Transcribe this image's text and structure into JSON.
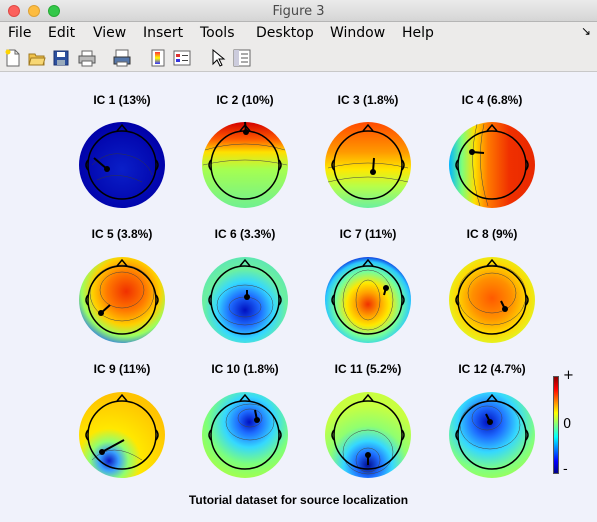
{
  "window": {
    "title": "Figure 3"
  },
  "menu": [
    "File",
    "Edit",
    "View",
    "Insert",
    "Tools",
    "Desktop",
    "Window",
    "Help"
  ],
  "toolbar_icons": [
    "new-figure-icon",
    "open-file-icon",
    "save-icon",
    "print-icon",
    "print-preview-icon",
    "colorbar-icon",
    "legend-icon",
    "pointer-icon",
    "property-editor-icon"
  ],
  "components": [
    {
      "label": "IC 1 (13%)",
      "pattern": "deep-blue"
    },
    {
      "label": "IC 2 (10%)",
      "pattern": "frontal-red"
    },
    {
      "label": "IC 3 (1.8%)",
      "pattern": "frontal-orange"
    },
    {
      "label": "IC 4 (6.8%)",
      "pattern": "right-red"
    },
    {
      "label": "IC 5 (3.8%)",
      "pattern": "central-red"
    },
    {
      "label": "IC 6 (3.3%)",
      "pattern": "central-blue"
    },
    {
      "label": "IC 7 (11%)",
      "pattern": "central-red-small"
    },
    {
      "label": "IC 8 (9%)",
      "pattern": "broad-orange"
    },
    {
      "label": "IC 9 (11%)",
      "pattern": "yellow-left-blue"
    },
    {
      "label": "IC 10 (1.8%)",
      "pattern": "top-blue"
    },
    {
      "label": "IC 11 (5.2%)",
      "pattern": "posterior-blue"
    },
    {
      "label": "IC 12 (4.7%)",
      "pattern": "top-blue-wide"
    }
  ],
  "colorbar": {
    "max_label": "+",
    "mid_label": "0",
    "min_label": "-"
  },
  "suptitle": "Tutorial dataset for source localization",
  "colors": {
    "canvas": "#f0f2fb",
    "head_outline": "#000000"
  }
}
